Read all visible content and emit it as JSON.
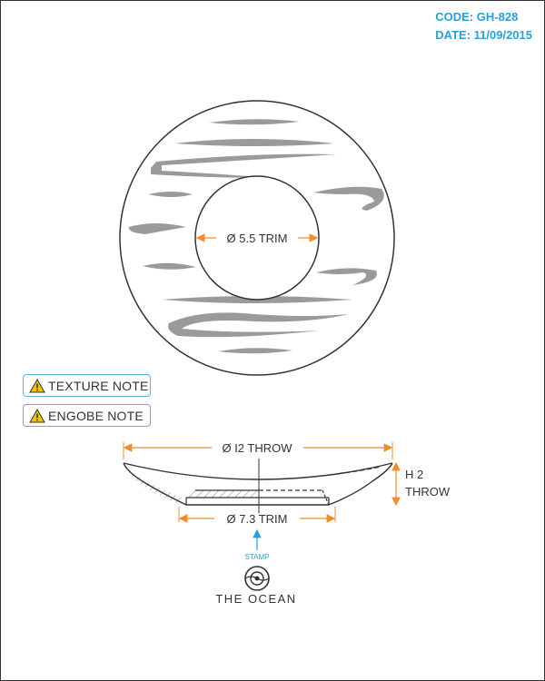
{
  "header": {
    "code": "CODE: GH-828",
    "date": "DATE: 11/09/2015"
  },
  "top_view": {
    "inner_dimension": "Ø 5.5 TRIM"
  },
  "notes": [
    {
      "label": "TEXTURE NOTE",
      "icon": "warning-icon"
    },
    {
      "label": "ENGOBE NOTE",
      "icon": "warning-icon"
    }
  ],
  "side_view": {
    "top_dimension": "Ø I2 THROW",
    "base_dimension": "Ø 7.3 TRIM",
    "height_line1": "H 2",
    "height_line2": "THROW"
  },
  "stamp": {
    "label": "STAMP",
    "brand": "THE OCEAN",
    "icon": "ocean-logo-icon"
  },
  "colors": {
    "accent_blue": "#2a9fd8",
    "dimension_orange": "#f28c28",
    "warning_yellow": "#f5c400",
    "texture_gray": "#9a9a9a"
  }
}
